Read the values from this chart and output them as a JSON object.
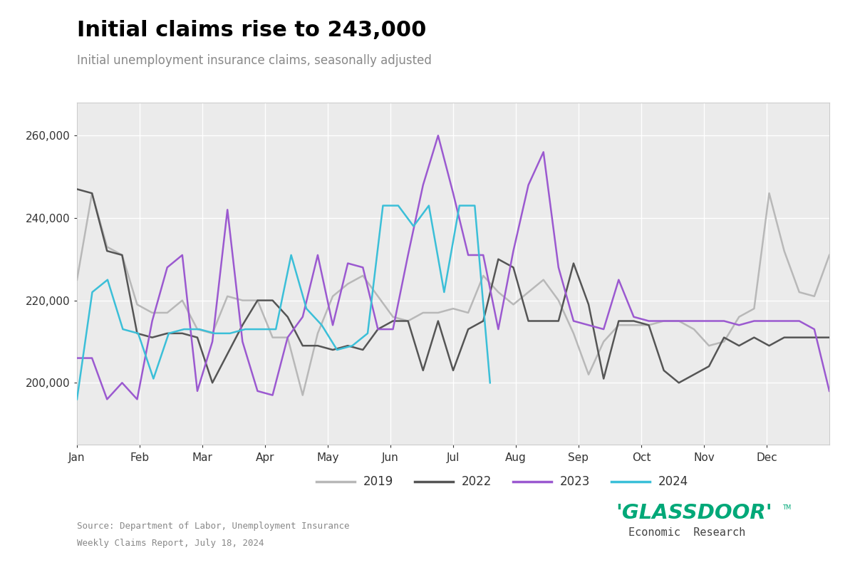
{
  "title": "Initial claims rise to 243,000",
  "subtitle": "Initial unemployment insurance claims, seasonally adjusted",
  "source": "Source: Department of Labor, Unemployment Insurance\nWeekly Claims Report, July 18, 2024",
  "colors": {
    "2019": "#b8b8b8",
    "2022": "#555555",
    "2023": "#9b59d0",
    "2024": "#3bbfd8"
  },
  "ylim": [
    185000,
    268000
  ],
  "yticks": [
    200000,
    220000,
    240000,
    260000
  ],
  "x_labels": [
    "Jan",
    "Feb",
    "Mar",
    "Apr",
    "May",
    "Jun",
    "Jul",
    "Aug",
    "Sep",
    "Oct",
    "Nov",
    "Dec"
  ],
  "data_2019": [
    225000,
    246000,
    233000,
    231000,
    219000,
    217000,
    217000,
    220000,
    213000,
    212000,
    221000,
    220000,
    220000,
    211000,
    211000,
    197000,
    212000,
    221000,
    224000,
    226000,
    221000,
    216000,
    215000,
    217000,
    217000,
    218000,
    217000,
    226000,
    222000,
    219000,
    222000,
    225000,
    220000,
    212000,
    202000,
    210000,
    214000,
    214000,
    214000,
    215000,
    215000,
    213000,
    209000,
    210000,
    216000,
    218000,
    246000,
    232000,
    222000,
    221000,
    231000
  ],
  "data_2022": [
    247000,
    246000,
    232000,
    231000,
    212000,
    211000,
    212000,
    212000,
    211000,
    200000,
    207000,
    214000,
    220000,
    220000,
    216000,
    209000,
    209000,
    208000,
    209000,
    208000,
    213000,
    215000,
    215000,
    203000,
    215000,
    203000,
    213000,
    215000,
    230000,
    228000,
    215000,
    215000,
    215000,
    229000,
    219000,
    201000,
    215000,
    215000,
    214000,
    203000,
    200000,
    202000,
    204000,
    211000,
    209000,
    211000,
    209000,
    211000,
    211000,
    211000,
    211000
  ],
  "data_2023": [
    206000,
    206000,
    196000,
    200000,
    196000,
    215000,
    228000,
    231000,
    198000,
    210000,
    242000,
    210000,
    198000,
    197000,
    211000,
    216000,
    231000,
    214000,
    229000,
    228000,
    213000,
    213000,
    231000,
    248000,
    260000,
    246000,
    231000,
    231000,
    213000,
    232000,
    248000,
    256000,
    228000,
    215000,
    214000,
    213000,
    225000,
    216000,
    215000,
    215000,
    215000,
    215000,
    215000,
    215000,
    214000,
    215000,
    215000,
    215000,
    215000,
    213000,
    198000
  ],
  "data_2024": [
    196000,
    222000,
    225000,
    213000,
    212000,
    201000,
    212000,
    213000,
    213000,
    212000,
    212000,
    213000,
    213000,
    213000,
    231000,
    218000,
    214000,
    208000,
    209000,
    212000,
    243000,
    243000,
    238000,
    243000,
    222000,
    243000,
    243000,
    200000
  ]
}
